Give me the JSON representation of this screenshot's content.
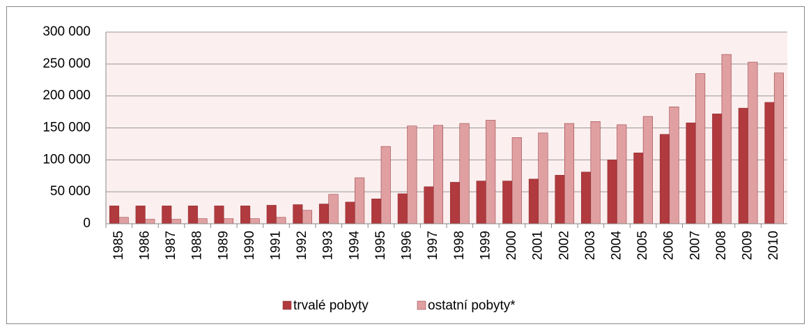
{
  "chart_data": {
    "type": "bar",
    "categories": [
      "1985",
      "1986",
      "1987",
      "1988",
      "1989",
      "1990",
      "1991",
      "1992",
      "1993",
      "1994",
      "1995",
      "1996",
      "1997",
      "1998",
      "1999",
      "2000",
      "2001",
      "2002",
      "2003",
      "2004",
      "2005",
      "2006",
      "2007",
      "2008",
      "2009",
      "2010"
    ],
    "series": [
      {
        "name": "trvalé pobyty",
        "color": "#b03a3e",
        "values": [
          28000,
          28000,
          28000,
          28000,
          28000,
          28000,
          29000,
          30000,
          31000,
          34000,
          39000,
          47000,
          58000,
          65000,
          67000,
          67000,
          70000,
          76000,
          81000,
          100000,
          111000,
          140000,
          158000,
          172000,
          181000,
          190000
        ]
      },
      {
        "name": "ostatní pobyty*",
        "color": "#e0a0a2",
        "values": [
          10000,
          7000,
          7000,
          8000,
          8000,
          8000,
          10000,
          21000,
          46000,
          72000,
          121000,
          153000,
          154000,
          157000,
          162000,
          135000,
          142000,
          157000,
          160000,
          155000,
          168000,
          183000,
          235000,
          265000,
          253000,
          236000
        ]
      }
    ],
    "ylim": [
      0,
      300000
    ],
    "yticks": [
      0,
      {
        "value": 50000,
        "label": "50 000"
      },
      {
        "value": 100000,
        "label": "100 000"
      },
      {
        "value": 150000,
        "label": "150 000"
      },
      {
        "value": 200000,
        "label": "200 000"
      },
      {
        "value": 250000,
        "label": "250 000"
      },
      {
        "value": 300000,
        "label": "300 000"
      }
    ],
    "grid": true,
    "legend": "bottom"
  }
}
